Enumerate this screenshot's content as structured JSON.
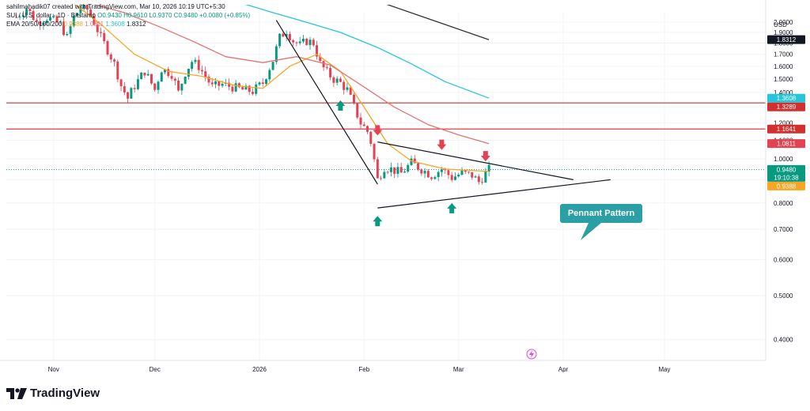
{
  "header": {
    "author_line": "sahilmahadik07 created with TradingView.com, Mar 10, 2026 10:19 UTC+5:30",
    "symbol": "SUI / U.S. dollar · 1D · Bitstamp",
    "ohlc": "O0.9430 H0.9610 L0.9370 C0.9480 +0.0080 (+0.85%)",
    "ema_label": "EMA 20/50/100/200",
    "ema_values": [
      "0.9388",
      "1.0811",
      "1.3608",
      "1.8312"
    ]
  },
  "brand": "TradingView",
  "annotation": "Pennant Pattern",
  "colors": {
    "up": "#089981",
    "down": "#e44152",
    "ema20": "#f6a623",
    "ema50": "#e57373",
    "ema100": "#26c6da",
    "ema200": "#333333",
    "resistance": "#d32f2f",
    "label_bg": "#2b9fa6"
  },
  "chart_data": {
    "type": "line",
    "interval": "1D",
    "y_axis": {
      "unit": "USD",
      "scale": "log",
      "range": [
        0.36,
        2.1
      ],
      "ticks": [
        "2.0000",
        "1.9000",
        "1.8000",
        "1.7000",
        "1.6000",
        "1.5000",
        "1.4000",
        "1.3000",
        "1.2000",
        "1.1000",
        "1.0000",
        "0.9000",
        "0.8000",
        "0.7000",
        "0.6000",
        "0.5000",
        "0.4000"
      ]
    },
    "x_axis": {
      "range": [
        "2025-10-18",
        "2026-05-31"
      ],
      "ticks": [
        {
          "label": "Nov",
          "date": "2025-11-01"
        },
        {
          "label": "Dec",
          "date": "2025-12-01"
        },
        {
          "label": "2026",
          "date": "2026-01-01"
        },
        {
          "label": "Feb",
          "date": "2026-02-01"
        },
        {
          "label": "Mar",
          "date": "2026-03-01"
        },
        {
          "label": "Apr",
          "date": "2026-04-01"
        },
        {
          "label": "May",
          "date": "2026-05-01"
        }
      ]
    },
    "price_tags": [
      {
        "value": 1.8312,
        "label": "1.8312",
        "color": "#131722"
      },
      {
        "value": 1.3608,
        "label": "1.3608",
        "color": "#26c6da"
      },
      {
        "value": 1.3289,
        "label": "1.3289",
        "color": "#d32f2f"
      },
      {
        "value": 1.1641,
        "label": "1.1641",
        "color": "#d32f2f"
      },
      {
        "value": 1.0811,
        "label": "1.0811",
        "color": "#e44152"
      },
      {
        "value": 0.948,
        "label": "0.9480",
        "label2": "19:10:38",
        "color": "#089981"
      },
      {
        "value": 0.9388,
        "label": "0.9388",
        "color": "#f6a623"
      }
    ],
    "horizontal_levels": [
      1.3289,
      1.1641
    ],
    "close_line": 0.948,
    "close_path": [
      [
        "2025-10-21",
        2.05
      ],
      [
        "2025-10-24",
        2.15
      ],
      [
        "2025-10-27",
        2.0
      ],
      [
        "2025-10-30",
        2.05
      ],
      [
        "2025-11-03",
        1.98
      ],
      [
        "2025-11-05",
        1.85
      ],
      [
        "2025-11-07",
        2.05
      ],
      [
        "2025-11-10",
        2.2
      ],
      [
        "2025-11-13",
        2.0
      ],
      [
        "2025-11-15",
        1.85
      ],
      [
        "2025-11-17",
        1.74
      ],
      [
        "2025-11-19",
        1.62
      ],
      [
        "2025-11-21",
        1.45
      ],
      [
        "2025-11-23",
        1.36
      ],
      [
        "2025-11-25",
        1.45
      ],
      [
        "2025-11-28",
        1.56
      ],
      [
        "2025-12-01",
        1.42
      ],
      [
        "2025-12-03",
        1.58
      ],
      [
        "2025-12-06",
        1.54
      ],
      [
        "2025-12-08",
        1.4
      ],
      [
        "2025-12-10",
        1.55
      ],
      [
        "2025-12-12",
        1.64
      ],
      [
        "2025-12-14",
        1.6
      ],
      [
        "2025-12-16",
        1.52
      ],
      [
        "2025-12-18",
        1.44
      ],
      [
        "2025-12-21",
        1.46
      ],
      [
        "2025-12-24",
        1.44
      ],
      [
        "2025-12-27",
        1.42
      ],
      [
        "2025-12-30",
        1.41
      ],
      [
        "2026-01-02",
        1.47
      ],
      [
        "2026-01-05",
        1.65
      ],
      [
        "2026-01-07",
        1.85
      ],
      [
        "2026-01-09",
        1.92
      ],
      [
        "2026-01-11",
        1.82
      ],
      [
        "2026-01-13",
        1.78
      ],
      [
        "2026-01-15",
        1.82
      ],
      [
        "2026-01-17",
        1.8
      ],
      [
        "2026-01-19",
        1.62
      ],
      [
        "2026-01-21",
        1.55
      ],
      [
        "2026-01-23",
        1.5
      ],
      [
        "2026-01-25",
        1.47
      ],
      [
        "2026-01-27",
        1.42
      ],
      [
        "2026-01-29",
        1.3
      ],
      [
        "2026-01-31",
        1.2
      ],
      [
        "2026-02-02",
        1.15
      ],
      [
        "2026-02-03",
        1.09
      ],
      [
        "2026-02-05",
        0.9
      ],
      [
        "2026-02-07",
        0.96
      ],
      [
        "2026-02-09",
        0.95
      ],
      [
        "2026-02-12",
        0.93
      ],
      [
        "2026-02-15",
        0.98
      ],
      [
        "2026-02-18",
        0.95
      ],
      [
        "2026-02-21",
        0.92
      ],
      [
        "2026-02-24",
        0.95
      ],
      [
        "2026-02-27",
        0.91
      ],
      [
        "2026-03-02",
        0.93
      ],
      [
        "2026-03-05",
        0.92
      ],
      [
        "2026-03-07",
        0.89
      ],
      [
        "2026-03-10",
        0.948
      ]
    ],
    "series": [
      {
        "period": 20,
        "color": "#f6a623",
        "values": [
          [
            "2025-11-07",
            2.2
          ],
          [
            "2025-11-15",
            1.98
          ],
          [
            "2025-11-25",
            1.7
          ],
          [
            "2025-12-05",
            1.56
          ],
          [
            "2025-12-15",
            1.52
          ],
          [
            "2025-12-25",
            1.45
          ],
          [
            "2026-01-02",
            1.43
          ],
          [
            "2026-01-10",
            1.6
          ],
          [
            "2026-01-18",
            1.7
          ],
          [
            "2026-01-25",
            1.56
          ],
          [
            "2026-02-01",
            1.3
          ],
          [
            "2026-02-08",
            1.08
          ],
          [
            "2026-02-15",
            0.99
          ],
          [
            "2026-02-25",
            0.95
          ],
          [
            "2026-03-10",
            0.9388
          ]
        ]
      },
      {
        "period": 50,
        "color": "#e57373",
        "values": [
          [
            "2025-11-12",
            2.2
          ],
          [
            "2025-11-22",
            2.1
          ],
          [
            "2025-12-02",
            1.96
          ],
          [
            "2025-12-12",
            1.82
          ],
          [
            "2025-12-22",
            1.68
          ],
          [
            "2026-01-02",
            1.63
          ],
          [
            "2026-01-12",
            1.68
          ],
          [
            "2026-01-22",
            1.61
          ],
          [
            "2026-02-01",
            1.44
          ],
          [
            "2026-02-10",
            1.3
          ],
          [
            "2026-02-20",
            1.19
          ],
          [
            "2026-03-01",
            1.13
          ],
          [
            "2026-03-10",
            1.0811
          ]
        ]
      },
      {
        "period": 100,
        "color": "#26c6da",
        "values": [
          [
            "2025-12-27",
            2.2
          ],
          [
            "2026-01-05",
            2.1
          ],
          [
            "2026-01-15",
            2.0
          ],
          [
            "2026-01-25",
            1.9
          ],
          [
            "2026-02-05",
            1.76
          ],
          [
            "2026-02-15",
            1.62
          ],
          [
            "2026-02-25",
            1.48
          ],
          [
            "2026-03-10",
            1.3608
          ]
        ]
      },
      {
        "period": 200,
        "color": "#333333",
        "values": [
          [
            "2026-02-07",
            2.2
          ],
          [
            "2026-03-10",
            1.8312
          ]
        ]
      }
    ],
    "trendlines": [
      {
        "name": "downtrend",
        "from": [
          "2026-01-06",
          2.02
        ],
        "to": [
          "2026-02-05",
          0.88
        ]
      },
      {
        "name": "pennant-upper",
        "from": [
          "2026-02-05",
          1.09
        ],
        "to": [
          "2026-04-04",
          0.9
        ]
      },
      {
        "name": "pennant-lower",
        "from": [
          "2026-02-05",
          0.78
        ],
        "to": [
          "2026-04-15",
          0.9
        ]
      }
    ],
    "markers": [
      {
        "type": "down",
        "date": "2026-02-05",
        "value": 1.14
      },
      {
        "type": "down",
        "date": "2026-02-24",
        "value": 1.06
      },
      {
        "type": "down",
        "date": "2026-03-09",
        "value": 1.0
      },
      {
        "type": "up",
        "date": "2026-01-25",
        "value": 1.33
      },
      {
        "type": "up",
        "date": "2026-02-05",
        "value": 0.74
      },
      {
        "type": "up",
        "date": "2026-02-27",
        "value": 0.79
      }
    ]
  }
}
